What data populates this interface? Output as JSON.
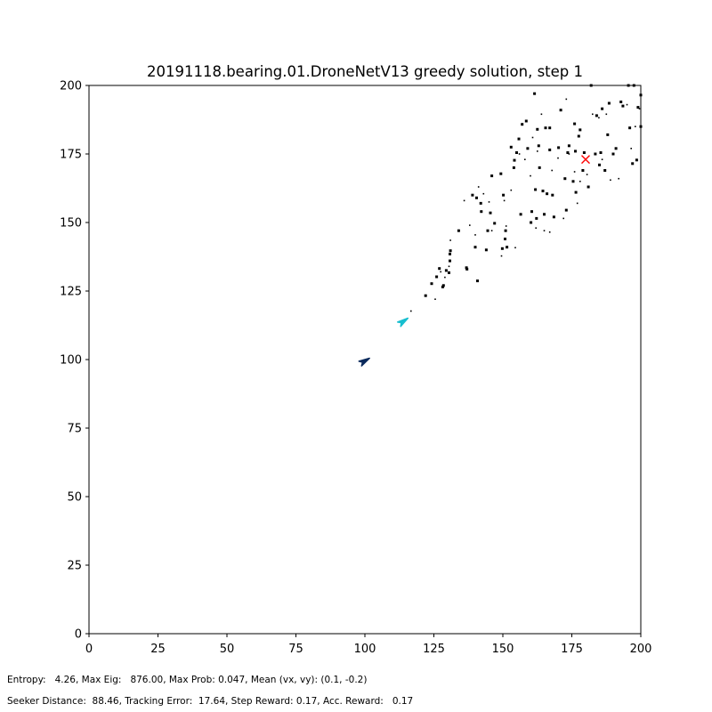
{
  "chart_data": {
    "type": "scatter",
    "title": "20191118.bearing.01.DroneNetV13 greedy solution, step 1",
    "xlabel": "",
    "ylabel": "",
    "xlim": [
      0,
      200
    ],
    "ylim": [
      0,
      200
    ],
    "xticks": [
      "0",
      "25",
      "50",
      "75",
      "100",
      "125",
      "150",
      "175",
      "200"
    ],
    "yticks": [
      "0",
      "25",
      "50",
      "75",
      "100",
      "125",
      "150",
      "175",
      "200"
    ],
    "grid": false,
    "target": {
      "x": 180,
      "y": 173,
      "marker": "x",
      "color": "#ff0000"
    },
    "agents": [
      {
        "x": 100,
        "y": 99.5,
        "heading_deg": 30,
        "color": "#0b2a5c"
      },
      {
        "x": 114,
        "y": 114,
        "heading_deg": 35,
        "color": "#17becf"
      }
    ],
    "particles": [
      [
        116.7,
        117.7
      ],
      [
        122,
        123.3
      ],
      [
        124.2,
        127.7
      ],
      [
        125.5,
        122
      ],
      [
        126,
        130.2
      ],
      [
        127,
        133.2
      ],
      [
        127.5,
        132
      ],
      [
        128.2,
        126.5
      ],
      [
        128.5,
        127
      ],
      [
        129,
        130
      ],
      [
        129.5,
        132.5
      ],
      [
        130.5,
        131.7
      ],
      [
        130.5,
        134
      ],
      [
        130.8,
        138.5
      ],
      [
        131,
        139.7
      ],
      [
        131,
        143.5
      ],
      [
        130.8,
        136
      ],
      [
        134,
        147
      ],
      [
        136,
        158
      ],
      [
        136.8,
        133.5
      ],
      [
        137,
        133
      ],
      [
        138,
        149
      ],
      [
        139,
        160
      ],
      [
        140,
        141
      ],
      [
        140,
        145.5
      ],
      [
        140.5,
        159
      ],
      [
        140.8,
        128.7
      ],
      [
        141.2,
        163
      ],
      [
        142,
        157
      ],
      [
        142.2,
        154
      ],
      [
        143,
        160.5
      ],
      [
        144,
        140
      ],
      [
        144.5,
        147
      ],
      [
        145,
        157.5
      ],
      [
        145.5,
        153.5
      ],
      [
        146,
        167
      ],
      [
        146,
        147
      ],
      [
        147,
        149.7
      ],
      [
        149.3,
        167.8
      ],
      [
        149.5,
        137.8
      ],
      [
        149.8,
        140.5
      ],
      [
        150.2,
        160
      ],
      [
        150.5,
        158
      ],
      [
        150.8,
        144
      ],
      [
        151,
        147
      ],
      [
        151.2,
        148.7
      ],
      [
        151.5,
        141
      ],
      [
        153,
        177.5
      ],
      [
        153,
        161.8
      ],
      [
        154,
        170
      ],
      [
        154.2,
        172.7
      ],
      [
        154.5,
        140.8
      ],
      [
        155,
        175.5
      ],
      [
        155.8,
        180.5
      ],
      [
        156,
        175
      ],
      [
        156.5,
        153
      ],
      [
        157,
        185.8
      ],
      [
        158,
        173
      ],
      [
        158.5,
        187
      ],
      [
        159,
        177
      ],
      [
        160,
        167
      ],
      [
        160.2,
        150
      ],
      [
        160.5,
        154
      ],
      [
        160.8,
        181
      ],
      [
        161.5,
        197
      ],
      [
        161.8,
        162
      ],
      [
        162,
        148
      ],
      [
        162.2,
        151.5
      ],
      [
        162.5,
        184
      ],
      [
        162.5,
        176
      ],
      [
        163,
        178
      ],
      [
        163.3,
        170
      ],
      [
        164,
        189.5
      ],
      [
        164.5,
        161.5
      ],
      [
        165,
        153
      ],
      [
        165,
        147
      ],
      [
        165.5,
        184.5
      ],
      [
        166,
        160.5
      ],
      [
        167,
        146.5
      ],
      [
        167,
        176.5
      ],
      [
        167,
        184.5
      ],
      [
        167.8,
        169
      ],
      [
        168,
        160
      ],
      [
        168.5,
        152
      ],
      [
        170,
        173.5
      ],
      [
        170.2,
        177.3
      ],
      [
        171,
        191
      ],
      [
        172,
        151.5
      ],
      [
        172.5,
        166
      ],
      [
        173,
        154.5
      ],
      [
        173,
        195
      ],
      [
        173.5,
        175.5
      ],
      [
        174,
        178
      ],
      [
        174,
        175
      ],
      [
        175.5,
        165
      ],
      [
        176,
        186
      ],
      [
        176,
        168.5
      ],
      [
        176.3,
        176
      ],
      [
        176.5,
        161
      ],
      [
        177,
        157
      ],
      [
        177.5,
        181.5
      ],
      [
        178,
        183.8
      ],
      [
        178,
        165
      ],
      [
        179,
        169
      ],
      [
        179.5,
        175.5
      ],
      [
        180.5,
        167.5
      ],
      [
        181,
        163
      ],
      [
        182,
        200
      ],
      [
        182.5,
        189.5
      ],
      [
        183.5,
        175
      ],
      [
        184,
        189
      ],
      [
        184.8,
        188.2
      ],
      [
        185,
        171
      ],
      [
        185.5,
        175.5
      ],
      [
        186,
        173
      ],
      [
        186,
        191.5
      ],
      [
        187,
        169
      ],
      [
        187.5,
        189.5
      ],
      [
        188,
        182
      ],
      [
        188.5,
        193.5
      ],
      [
        189,
        165.5
      ],
      [
        190,
        175
      ],
      [
        191,
        177
      ],
      [
        192,
        166
      ],
      [
        192.8,
        194
      ],
      [
        193.5,
        192.5
      ],
      [
        195,
        193
      ],
      [
        195.5,
        200
      ],
      [
        196,
        184.5
      ],
      [
        196.5,
        177
      ],
      [
        197,
        171.5
      ],
      [
        197.5,
        200
      ],
      [
        198,
        185
      ],
      [
        198.5,
        172.8
      ],
      [
        199,
        192
      ],
      [
        199.5,
        191.5
      ],
      [
        200,
        196.5
      ],
      [
        200,
        185
      ]
    ]
  },
  "footer": {
    "line1": "Entropy:   4.26, Max Eig:   876.00, Max Prob: 0.047, Mean (vx, vy): (0.1, -0.2)",
    "line2": "Seeker Distance:  88.46, Tracking Error:  17.64, Step Reward: 0.17, Acc. Reward:   0.17"
  }
}
